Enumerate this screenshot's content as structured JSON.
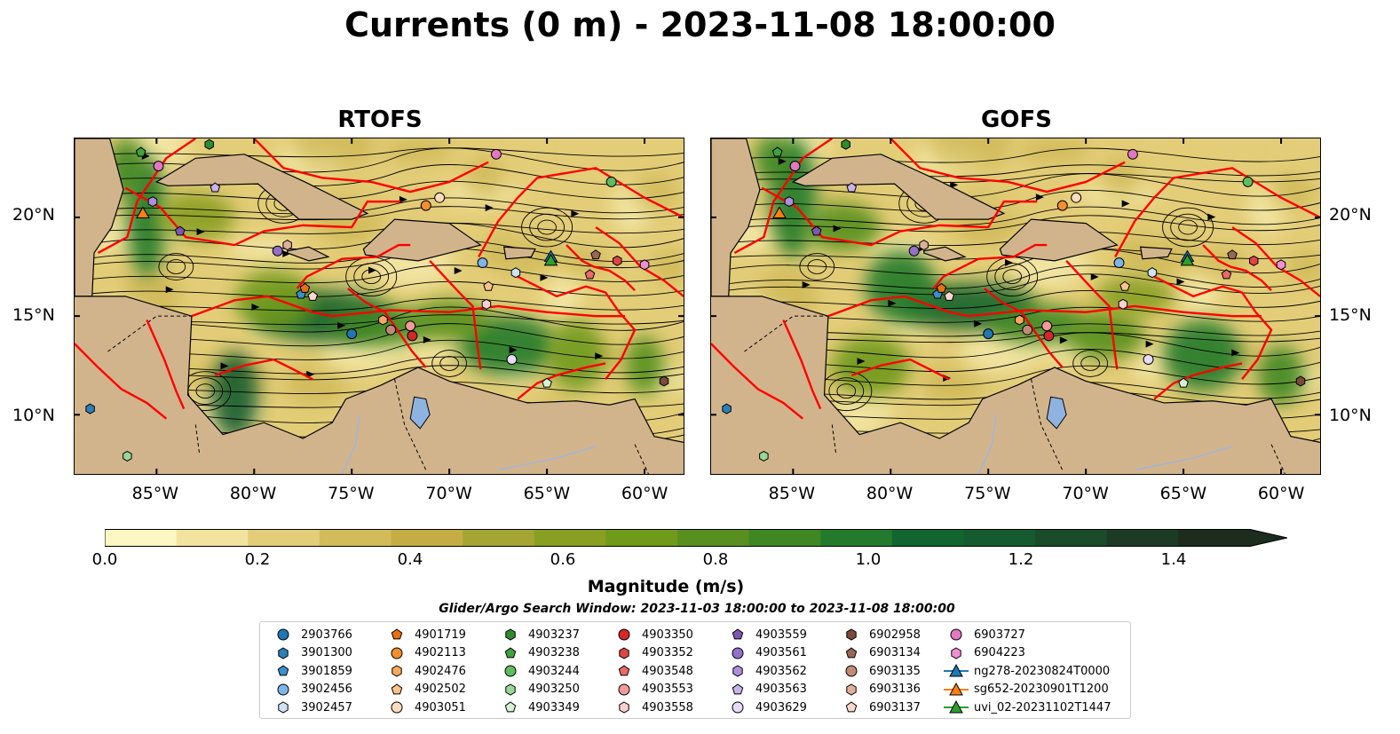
{
  "title": "Currents (0 m) - 2023-11-08 18:00:00",
  "panels": [
    {
      "id": "rtofs",
      "title": "RTOFS"
    },
    {
      "id": "gofs",
      "title": "GOFS"
    }
  ],
  "axes": {
    "lat_ticks": [
      "10°N",
      "15°N",
      "20°N"
    ],
    "lon_ticks": [
      "85°W",
      "80°W",
      "75°W",
      "70°W",
      "65°W",
      "60°W"
    ],
    "lon_range": [
      -89.2,
      -58.0
    ],
    "lat_range": [
      7.0,
      24.0
    ]
  },
  "colorbar": {
    "label": "Magnitude (m/s)",
    "range": [
      0.0,
      1.5
    ],
    "extend": "max",
    "ticks": [
      "0.0",
      "0.2",
      "0.4",
      "0.6",
      "0.8",
      "1.0",
      "1.2",
      "1.4"
    ],
    "tick_values": [
      0.0,
      0.2,
      0.4,
      0.6,
      0.8,
      1.0,
      1.2,
      1.4
    ],
    "colors": [
      "#fdf7c3",
      "#f2e49e",
      "#e3cd78",
      "#d3bb59",
      "#c4ad44",
      "#a5a534",
      "#889f22",
      "#6f9a1c",
      "#57901f",
      "#3f8723",
      "#237a2c",
      "#12652f",
      "#155b2f",
      "#1a4b2b",
      "#1c3b24",
      "#1c2d1d"
    ]
  },
  "search_window": "Glider/Argo Search Window: 2023-11-03 18:00:00 to 2023-11-08 18:00:00",
  "legend": {
    "items": [
      {
        "label": "2903766",
        "marker": "circle",
        "color": "#1f77b4"
      },
      {
        "label": "3901300",
        "marker": "hexagon",
        "color": "#2c7fb8"
      },
      {
        "label": "3901859",
        "marker": "pentagon",
        "color": "#3a8fd0"
      },
      {
        "label": "3902456",
        "marker": "circle",
        "color": "#7fb5e6"
      },
      {
        "label": "3902457",
        "marker": "hexagon",
        "color": "#cfe3f5"
      },
      {
        "label": "4901719",
        "marker": "pentagon",
        "color": "#e8700f"
      },
      {
        "label": "4902113",
        "marker": "circle",
        "color": "#f28e2b"
      },
      {
        "label": "4902476",
        "marker": "hexagon",
        "color": "#f8a95a"
      },
      {
        "label": "4902502",
        "marker": "pentagon",
        "color": "#fbc28a"
      },
      {
        "label": "4903051",
        "marker": "circle",
        "color": "#fddcbd"
      },
      {
        "label": "4903237",
        "marker": "hexagon",
        "color": "#2e8b2e"
      },
      {
        "label": "4903238",
        "marker": "pentagon",
        "color": "#3fa33f"
      },
      {
        "label": "4903244",
        "marker": "circle",
        "color": "#5ebd5e"
      },
      {
        "label": "4903250",
        "marker": "hexagon",
        "color": "#97d897"
      },
      {
        "label": "4903349",
        "marker": "pentagon",
        "color": "#d4f2d4"
      },
      {
        "label": "4903350",
        "marker": "circle",
        "color": "#d62728"
      },
      {
        "label": "4903352",
        "marker": "hexagon",
        "color": "#e04545"
      },
      {
        "label": "4903548",
        "marker": "pentagon",
        "color": "#e96a6a"
      },
      {
        "label": "4903553",
        "marker": "circle",
        "color": "#f29a9a"
      },
      {
        "label": "4903558",
        "marker": "hexagon",
        "color": "#fad0d0"
      },
      {
        "label": "4903559",
        "marker": "pentagon",
        "color": "#7e57b5"
      },
      {
        "label": "4903561",
        "marker": "circle",
        "color": "#9470c9"
      },
      {
        "label": "4903562",
        "marker": "hexagon",
        "color": "#ad8fdc"
      },
      {
        "label": "4903563",
        "marker": "pentagon",
        "color": "#c8b3eb"
      },
      {
        "label": "4903629",
        "marker": "circle",
        "color": "#e6dcf7"
      },
      {
        "label": "6902958",
        "marker": "hexagon",
        "color": "#7a4a3a"
      },
      {
        "label": "6903134",
        "marker": "pentagon",
        "color": "#9a6655"
      },
      {
        "label": "6903135",
        "marker": "circle",
        "color": "#c08a78"
      },
      {
        "label": "6903136",
        "marker": "hexagon",
        "color": "#e0ae9c"
      },
      {
        "label": "6903137",
        "marker": "pentagon",
        "color": "#fbd8cb"
      },
      {
        "label": "6903727",
        "marker": "circle",
        "color": "#e377c2"
      },
      {
        "label": "6904223",
        "marker": "hexagon",
        "color": "#ee8fd2"
      },
      {
        "label": "ng278-20230824T0000",
        "marker": "triangle-line",
        "color": "#1f77b4"
      },
      {
        "label": "sg652-20230901T1200",
        "marker": "triangle-line",
        "color": "#ff7f0e"
      },
      {
        "label": "uvi_02-20231102T1447",
        "marker": "triangle-line",
        "color": "#2ca02c"
      }
    ]
  },
  "floats": [
    {
      "id": "2903766",
      "lon": -75.0,
      "lat": 14.1
    },
    {
      "id": "3901300",
      "lon": -88.4,
      "lat": 10.3
    },
    {
      "id": "3901859",
      "lon": -77.6,
      "lat": 16.1
    },
    {
      "id": "3902456",
      "lon": -68.3,
      "lat": 17.7
    },
    {
      "id": "3902457",
      "lon": -66.6,
      "lat": 17.2
    },
    {
      "id": "4901719",
      "lon": -77.4,
      "lat": 16.4
    },
    {
      "id": "4902113",
      "lon": -71.2,
      "lat": 20.6
    },
    {
      "id": "4902476",
      "lon": -73.4,
      "lat": 14.8
    },
    {
      "id": "4902502",
      "lon": -68.0,
      "lat": 16.5
    },
    {
      "id": "4903051",
      "lon": -70.5,
      "lat": 21.0
    },
    {
      "id": "4903237",
      "lon": -82.3,
      "lat": 23.7
    },
    {
      "id": "4903238",
      "lon": -85.8,
      "lat": 23.3
    },
    {
      "id": "4903244",
      "lon": -61.7,
      "lat": 21.8
    },
    {
      "id": "4903250",
      "lon": -86.5,
      "lat": 7.9
    },
    {
      "id": "4903349",
      "lon": -65.0,
      "lat": 11.6
    },
    {
      "id": "4903350",
      "lon": -71.9,
      "lat": 14.0
    },
    {
      "id": "4903352",
      "lon": -61.4,
      "lat": 17.8
    },
    {
      "id": "4903548",
      "lon": -62.8,
      "lat": 17.1
    },
    {
      "id": "4903553",
      "lon": -72.0,
      "lat": 14.5
    },
    {
      "id": "4903558",
      "lon": -68.1,
      "lat": 15.6
    },
    {
      "id": "4903559",
      "lon": -83.8,
      "lat": 19.3
    },
    {
      "id": "4903561",
      "lon": -78.8,
      "lat": 18.3
    },
    {
      "id": "4903562",
      "lon": -85.2,
      "lat": 20.8
    },
    {
      "id": "4903563",
      "lon": -82.0,
      "lat": 21.5
    },
    {
      "id": "4903629",
      "lon": -66.8,
      "lat": 12.8
    },
    {
      "id": "6902958",
      "lon": -59.0,
      "lat": 11.7
    },
    {
      "id": "6903134",
      "lon": -62.5,
      "lat": 18.1
    },
    {
      "id": "6903135",
      "lon": -73.0,
      "lat": 14.3
    },
    {
      "id": "6903136",
      "lon": -78.3,
      "lat": 18.6
    },
    {
      "id": "6903137",
      "lon": -77.0,
      "lat": 16.0
    },
    {
      "id": "6903727",
      "lon": -67.6,
      "lat": 23.2
    },
    {
      "id": "6904223",
      "lon": -60.0,
      "lat": 17.6
    },
    {
      "id": "6903727b",
      "lon": -84.9,
      "lat": 22.6
    }
  ],
  "gliders": [
    {
      "id": "ng278-20230824T0000",
      "lon": -64.8,
      "lat": 18.0
    },
    {
      "id": "sg652-20230901T1200",
      "lon": -85.7,
      "lat": 20.2
    },
    {
      "id": "uvi_02-20231102T1447",
      "lon": -64.8,
      "lat": 17.8
    }
  ],
  "land_color": "#d2b48c",
  "lake_color": "#8fb3e0",
  "eez_color": "#ff0000"
}
